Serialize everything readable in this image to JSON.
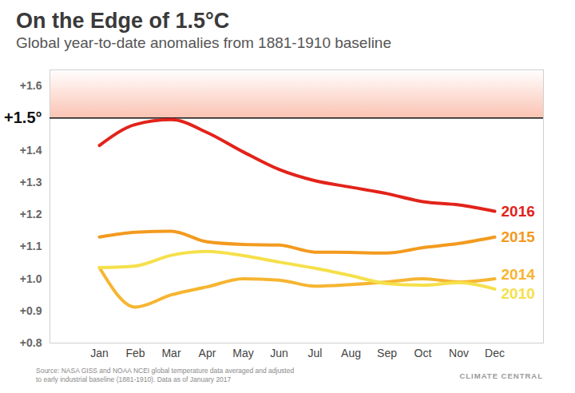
{
  "chart_data": {
    "type": "line",
    "title": "On the Edge of 1.5°C",
    "subtitle": "Global year-to-date anomalies from 1881-1910 baseline",
    "categories": [
      "Jan",
      "Feb",
      "Mar",
      "Apr",
      "May",
      "Jun",
      "Jul",
      "Aug",
      "Sep",
      "Oct",
      "Nov",
      "Dec"
    ],
    "series": [
      {
        "name": "2016",
        "color": "#e2231a",
        "values": [
          1.415,
          1.48,
          1.495,
          1.455,
          1.395,
          1.34,
          1.305,
          1.285,
          1.265,
          1.24,
          1.23,
          1.21
        ]
      },
      {
        "name": "2015",
        "color": "#f39a1e",
        "values": [
          1.13,
          1.145,
          1.148,
          1.115,
          1.107,
          1.105,
          1.083,
          1.082,
          1.08,
          1.097,
          1.11,
          1.13
        ]
      },
      {
        "name": "2014",
        "color": "#f6b531",
        "values": [
          1.035,
          0.912,
          0.95,
          0.975,
          1.0,
          0.996,
          0.977,
          0.982,
          0.99,
          1.0,
          0.99,
          1.0
        ]
      },
      {
        "name": "2010",
        "color": "#f5e04a",
        "values": [
          1.035,
          1.04,
          1.073,
          1.085,
          1.072,
          1.052,
          1.033,
          1.01,
          0.985,
          0.98,
          0.988,
          0.968
        ]
      }
    ],
    "threshold": 1.5,
    "ylim": [
      0.8,
      1.65
    ],
    "yticks": [
      {
        "value": 0.8,
        "label": "+0.8"
      },
      {
        "value": 0.9,
        "label": "+0.9"
      },
      {
        "value": 1.0,
        "label": "+1.0"
      },
      {
        "value": 1.1,
        "label": "+1.1"
      },
      {
        "value": 1.2,
        "label": "+1.2"
      },
      {
        "value": 1.3,
        "label": "+1.3"
      },
      {
        "value": 1.4,
        "label": "+1.4"
      },
      {
        "value": 1.5,
        "label": "+1.5°"
      },
      {
        "value": 1.6,
        "label": "+1.6"
      }
    ],
    "grid": false,
    "source": [
      "Source: NASA GISS and NOAA NCEI global temperature data averaged and adjusted",
      "to early industrial baseline (1881-1910). Data as of January 2017"
    ],
    "annotations": [
      "CLIMATE CENTRAL"
    ]
  }
}
